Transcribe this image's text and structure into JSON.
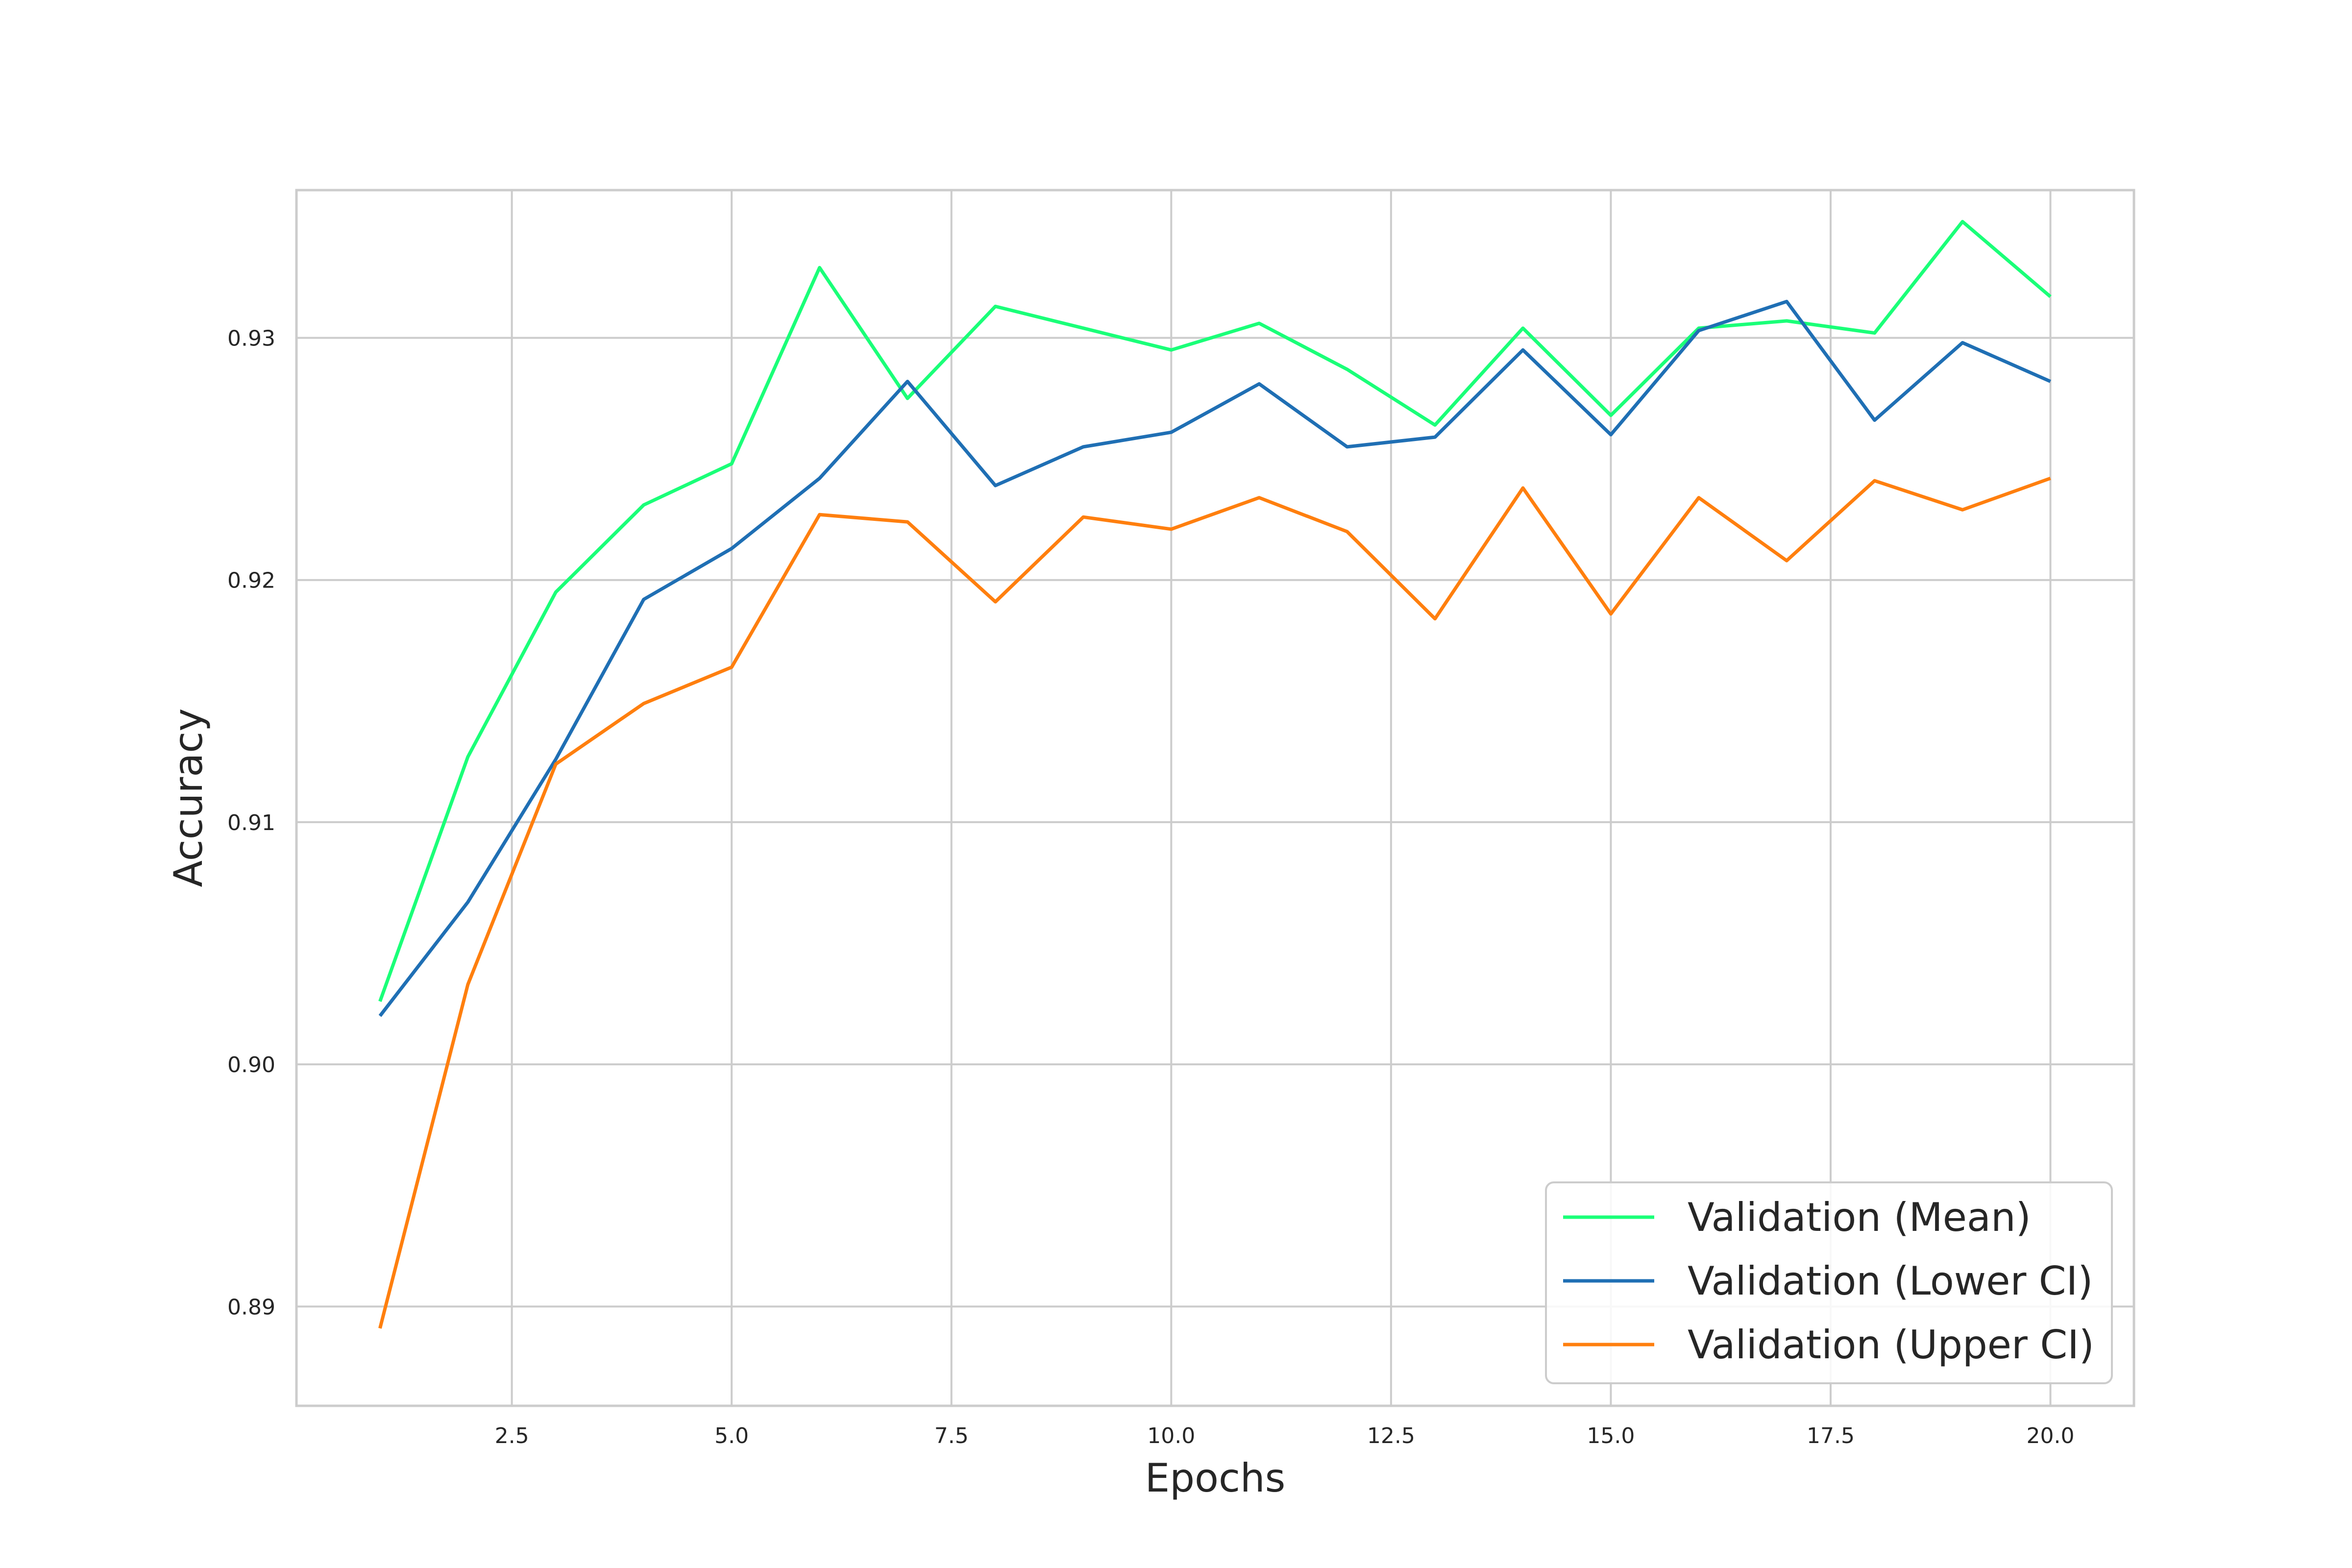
{
  "chart_data": {
    "type": "line",
    "title": "",
    "xlabel": "Epochs",
    "ylabel": "Accuracy",
    "xlim": [
      0.05,
      20.95
    ],
    "ylim": [
      0.8859,
      0.9361
    ],
    "grid": true,
    "x_ticks": [
      {
        "value": 2.5,
        "label": "2.5"
      },
      {
        "value": 5.0,
        "label": "5.0"
      },
      {
        "value": 7.5,
        "label": "7.5"
      },
      {
        "value": 10.0,
        "label": "10.0"
      },
      {
        "value": 12.5,
        "label": "12.5"
      },
      {
        "value": 15.0,
        "label": "15.0"
      },
      {
        "value": 17.5,
        "label": "17.5"
      },
      {
        "value": 20.0,
        "label": "20.0"
      }
    ],
    "y_ticks": [
      {
        "value": 0.89,
        "label": "0.89"
      },
      {
        "value": 0.9,
        "label": "0.90"
      },
      {
        "value": 0.91,
        "label": "0.91"
      },
      {
        "value": 0.92,
        "label": "0.92"
      },
      {
        "value": 0.93,
        "label": "0.93"
      }
    ],
    "legend_position": "lower-right",
    "x": [
      1,
      2,
      3,
      4,
      5,
      6,
      7,
      8,
      9,
      10,
      11,
      12,
      13,
      14,
      15,
      16,
      17,
      18,
      19,
      20
    ],
    "series": [
      {
        "name": "Validation (Mean)",
        "color": "#1aff78",
        "values": [
          0.9026,
          0.9127,
          0.9195,
          0.9231,
          0.9248,
          0.9329,
          0.9275,
          0.9313,
          0.9304,
          0.9295,
          0.9306,
          0.9287,
          0.9264,
          0.9304,
          0.9268,
          0.9304,
          0.9307,
          0.9302,
          0.9348,
          0.9317
        ]
      },
      {
        "name": "Validation (Lower CI)",
        "color": "#1f6fb4",
        "values": [
          0.902,
          0.9067,
          0.9126,
          0.9192,
          0.9213,
          0.9242,
          0.9282,
          0.9239,
          0.9255,
          0.9261,
          0.9281,
          0.9255,
          0.9259,
          0.9295,
          0.926,
          0.9303,
          0.9315,
          0.9266,
          0.9298,
          0.9282
        ]
      },
      {
        "name": "Validation (Upper CI)",
        "color": "#ff7f0e",
        "values": [
          0.8891,
          0.9033,
          0.9124,
          0.9149,
          0.9164,
          0.9227,
          0.9224,
          0.9191,
          0.9226,
          0.9221,
          0.9234,
          0.922,
          0.9184,
          0.9238,
          0.9186,
          0.9234,
          0.9208,
          0.9241,
          0.9229,
          0.9242
        ]
      }
    ]
  }
}
